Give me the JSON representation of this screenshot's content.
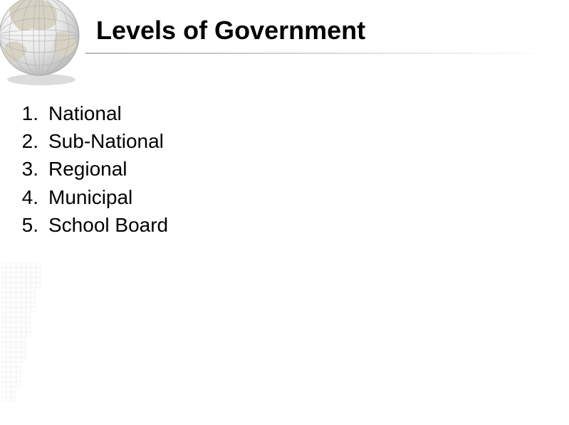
{
  "slide": {
    "title": "Levels of Government",
    "title_fontsize": 36,
    "title_color": "#000000",
    "background_color": "#ffffff",
    "underline_gradient_start": "#b8b8b8",
    "underline_gradient_end": "#ffffff"
  },
  "list": {
    "fontsize": 28,
    "text_color": "#000000",
    "items": [
      {
        "number": "1.",
        "text": "National"
      },
      {
        "number": "2.",
        "text": "Sub-National"
      },
      {
        "number": "3.",
        "text": "Regional"
      },
      {
        "number": "4.",
        "text": "Municipal"
      },
      {
        "number": "5.",
        "text": "School Board"
      }
    ]
  },
  "globe": {
    "land_color": "#d8d2c4",
    "ocean_color": "#f2f2f2",
    "grid_color": "#b0b0b0",
    "shadow_color": "#888888"
  },
  "corner_grid": {
    "stroke": "#c8c8c8",
    "cell": 7,
    "rows": 28,
    "cols": 8
  }
}
